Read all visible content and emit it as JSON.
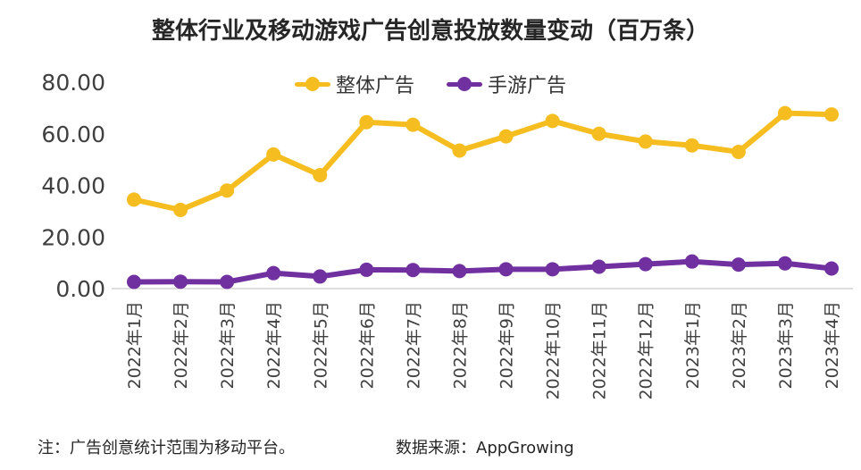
{
  "chart_data": {
    "type": "line",
    "title": "整体行业及移动游戏广告创意投放数量变动（百万条）",
    "categories": [
      "2022年1月",
      "2022年2月",
      "2022年3月",
      "2022年4月",
      "2022年5月",
      "2022年6月",
      "2022年7月",
      "2022年8月",
      "2022年9月",
      "2022年10月",
      "2022年11月",
      "2022年12月",
      "2023年1月",
      "2023年2月",
      "2023年3月",
      "2023年4月"
    ],
    "series": [
      {
        "name": "整体广告",
        "color": "#F5BD1F",
        "values": [
          34.5,
          30.5,
          38.0,
          52.0,
          44.0,
          64.5,
          63.5,
          53.5,
          59.0,
          65.0,
          60.0,
          57.0,
          55.5,
          53.0,
          68.0,
          67.5
        ]
      },
      {
        "name": "手游广告",
        "color": "#7030A0",
        "values": [
          2.6,
          2.7,
          2.6,
          6.0,
          4.7,
          7.3,
          7.2,
          6.8,
          7.5,
          7.5,
          8.5,
          9.5,
          10.5,
          9.3,
          9.8,
          7.8
        ]
      }
    ],
    "y_ticks": [
      "80.00",
      "60.00",
      "40.00",
      "20.00",
      "0.00"
    ],
    "y_tick_values": [
      80,
      60,
      40,
      20,
      0
    ],
    "ylim": [
      0,
      80
    ],
    "legend_position": "top"
  },
  "footer": {
    "note": "注：广告创意统计范围为移动平台。",
    "source": "数据来源：AppGrowing"
  }
}
